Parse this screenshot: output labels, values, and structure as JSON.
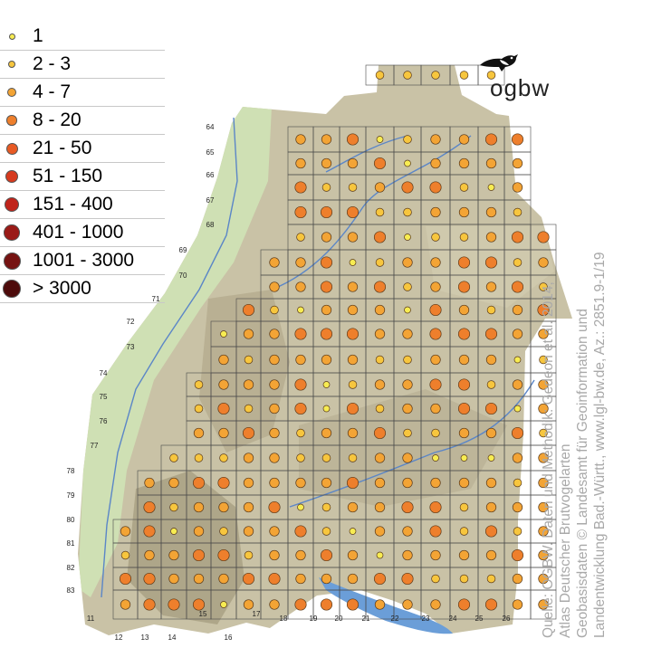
{
  "legend": {
    "items": [
      {
        "label": "1",
        "color": "#f7ec52"
      },
      {
        "label": "2 - 3",
        "color": "#f7c63e"
      },
      {
        "label": "4 - 7",
        "color": "#f3a435"
      },
      {
        "label": "8 - 20",
        "color": "#ee7f2c"
      },
      {
        "label": "21 - 50",
        "color": "#e85a24"
      },
      {
        "label": "51 - 150",
        "color": "#d63a1e"
      },
      {
        "label": "151 - 400",
        "color": "#c0241b"
      },
      {
        "label": "401 - 1000",
        "color": "#9a1a17"
      },
      {
        "label": "1001 - 3000",
        "color": "#761312"
      },
      {
        "label": "> 3000",
        "color": "#4d0b0b"
      }
    ]
  },
  "logo": {
    "text": "ogbw",
    "icon": "bird-icon"
  },
  "grid_labels": {
    "columns": [
      "11",
      "12",
      "13",
      "14",
      "15",
      "16",
      "17",
      "18",
      "19",
      "20",
      "21",
      "22",
      "23",
      "24",
      "25",
      "26"
    ],
    "rows": [
      "64",
      "65",
      "66",
      "67",
      "68",
      "69",
      "70",
      "71",
      "72",
      "73",
      "74",
      "75",
      "76",
      "77",
      "78",
      "79",
      "80",
      "81",
      "82",
      "83"
    ]
  },
  "source_note": {
    "lines": [
      "Quelle: OGBW. Daten und Methodik: Gedeon et al. 2014,",
      "Atlas Deutscher Brutvogelarten",
      "Geobasisdaten © Landesamt für Geoinformation und",
      "Landentwicklung Bad.-Württ., www.lgl-bw.de, Az.: 2851.9-1/19"
    ]
  },
  "colors": {
    "terrain": "#c9c2a6",
    "rhine_plain": "#cfe0b4",
    "lake": "#6b9ed8",
    "water": "#5b86c7",
    "grid": "#4a4a4a"
  }
}
